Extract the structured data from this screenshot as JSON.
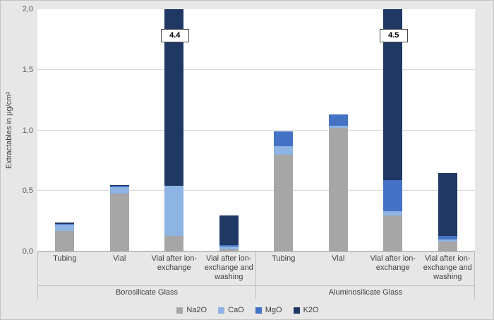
{
  "chart_data": {
    "type": "bar",
    "subtype": "stacked",
    "title": "",
    "ylabel": "Extractables in µg/cm²",
    "xlabel": "",
    "ylim": [
      0,
      2.0
    ],
    "ytick_values": [
      0,
      0.5,
      1.0,
      1.5,
      2.0
    ],
    "yticks": [
      "0,0",
      "0,5",
      "1,0",
      "1,5",
      "2,0"
    ],
    "grid": true,
    "legend_position": "bottom",
    "groups": [
      {
        "label": "Borosilicate Glass",
        "categories": [
          "Tubing",
          "Vial",
          "Vial after ion-exchange",
          "Vial after ion-exchange and washing"
        ]
      },
      {
        "label": "Aluminosilicate Glass",
        "categories": [
          "Tubing",
          "Vial",
          "Vial after ion-exchange",
          "Vial after ion-exchange and washing"
        ]
      }
    ],
    "series": [
      {
        "name": "Na2O",
        "color": "#a6a6a6",
        "values": [
          0.17,
          0.48,
          0.13,
          0.02,
          0.8,
          1.02,
          0.3,
          0.08
        ]
      },
      {
        "name": "CaO",
        "color": "#8db4e2",
        "values": [
          0.05,
          0.05,
          0.41,
          0.02,
          0.07,
          0.02,
          0.03,
          0.02
        ]
      },
      {
        "name": "MgO",
        "color": "#4472c4",
        "values": [
          0.01,
          0.01,
          0.0,
          0.01,
          0.12,
          0.09,
          0.26,
          0.03
        ]
      },
      {
        "name": "K2O",
        "color": "#1f3864",
        "values": [
          0.01,
          0.01,
          3.86,
          0.25,
          0.0,
          0.0,
          3.91,
          0.52
        ]
      }
    ],
    "bar_totals": [
      0.24,
      0.55,
      4.4,
      0.3,
      0.99,
      1.13,
      4.5,
      0.65
    ],
    "annotations": [
      {
        "bar_index": 2,
        "label": "4.4"
      },
      {
        "bar_index": 6,
        "label": "4.5"
      }
    ]
  }
}
